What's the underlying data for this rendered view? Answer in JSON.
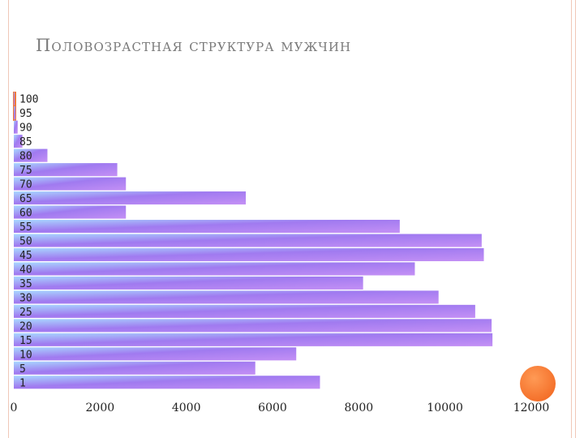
{
  "slide": {
    "title": "Половозрастная структура мужчин"
  },
  "colors": {
    "bar_light": "#a8d8ff",
    "bar_mid": "#a07af0",
    "bar_dark": "#c490f5",
    "accent": "#f07a3a",
    "frame": "#f0c8b8"
  },
  "chart_data": {
    "type": "bar",
    "orientation": "horizontal",
    "title": "",
    "xlabel": "",
    "ylabel": "",
    "xlim": [
      0,
      12000
    ],
    "x_ticks": [
      "0",
      "2000",
      "4000",
      "6000",
      "8000",
      "10000",
      "12000"
    ],
    "categories": [
      "1",
      "5",
      "10",
      "15",
      "20",
      "25",
      "30",
      "35",
      "40",
      "45",
      "50",
      "55",
      "60",
      "65",
      "70",
      "75",
      "80",
      "85",
      "90",
      "95",
      "100"
    ],
    "values": [
      7100,
      5600,
      6550,
      11100,
      11080,
      10700,
      9850,
      8100,
      9300,
      10900,
      10850,
      8950,
      2600,
      5380,
      2600,
      2400,
      780,
      200,
      90,
      40,
      20
    ],
    "grid": false,
    "legend": false
  }
}
